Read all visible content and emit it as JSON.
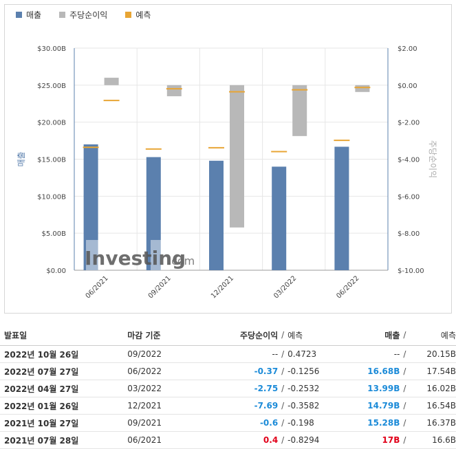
{
  "legend": [
    {
      "label": "매출",
      "color": "#5b80ae"
    },
    {
      "label": "주당순이익",
      "color": "#b8b8b8"
    },
    {
      "label": "예측",
      "color": "#e8a534"
    }
  ],
  "watermark": {
    "brand": "Investing",
    "suffix": ".com"
  },
  "chart_data": {
    "type": "bar",
    "categories": [
      "06/2021",
      "09/2021",
      "12/2021",
      "03/2022",
      "06/2022"
    ],
    "ylabel_left": "매출",
    "ylabel_right": "주당순이익",
    "y_left": {
      "min": 0,
      "max": 30,
      "ticks": [
        "$0.00",
        "$5.00B",
        "$10.00B",
        "$15.00B",
        "$20.00B",
        "$25.00B",
        "$30.00B"
      ]
    },
    "y_right": {
      "min": -10,
      "max": 2,
      "ticks": [
        "$-10.00",
        "$-8.00",
        "$-6.00",
        "$-4.00",
        "$-2.00",
        "$0.00",
        "$2.00"
      ]
    },
    "series": [
      {
        "name": "매출",
        "axis": "left",
        "values": [
          17,
          15.28,
          14.79,
          13.99,
          16.68
        ]
      },
      {
        "name": "주당순이익",
        "axis": "right",
        "values": [
          0.4,
          -0.6,
          -7.69,
          -2.75,
          -0.37
        ]
      },
      {
        "name": "예측",
        "axis": "left",
        "values": [
          16.6,
          16.37,
          16.54,
          16.02,
          17.54
        ]
      },
      {
        "name": "예측",
        "axis": "right",
        "values": [
          -0.8294,
          -0.198,
          -0.3582,
          -0.2532,
          -0.1256
        ]
      }
    ],
    "grid": true
  },
  "table": {
    "headers": {
      "date": "발표일",
      "period": "마감 기준",
      "eps": "주당순이익",
      "sep": "/",
      "eps_forecast": "예측",
      "revenue": "매출",
      "revenue_forecast": "예측"
    },
    "rows": [
      {
        "date": "2022년 10월 26일",
        "period": "09/2022",
        "eps": "--",
        "eps_forecast": "0.4723",
        "revenue": "--",
        "revenue_forecast": "20.15B",
        "eps_class": "na",
        "rev_class": "na"
      },
      {
        "date": "2022년 07월 27일",
        "period": "06/2022",
        "eps": "-0.37",
        "eps_forecast": "-0.1256",
        "revenue": "16.68B",
        "revenue_forecast": "17.54B",
        "eps_class": "neg",
        "rev_class": "neg"
      },
      {
        "date": "2022년 04월 27일",
        "period": "03/2022",
        "eps": "-2.75",
        "eps_forecast": "-0.2532",
        "revenue": "13.99B",
        "revenue_forecast": "16.02B",
        "eps_class": "neg",
        "rev_class": "neg"
      },
      {
        "date": "2022년 01월 26일",
        "period": "12/2021",
        "eps": "-7.69",
        "eps_forecast": "-0.3582",
        "revenue": "14.79B",
        "revenue_forecast": "16.54B",
        "eps_class": "neg",
        "rev_class": "neg"
      },
      {
        "date": "2021년 10월 27일",
        "period": "09/2021",
        "eps": "-0.6",
        "eps_forecast": "-0.198",
        "revenue": "15.28B",
        "revenue_forecast": "16.37B",
        "eps_class": "neg",
        "rev_class": "neg"
      },
      {
        "date": "2021년 07월 28일",
        "period": "06/2021",
        "eps": "0.4",
        "eps_forecast": "-0.8294",
        "revenue": "17B",
        "revenue_forecast": "16.6B",
        "eps_class": "pos",
        "rev_class": "pos"
      }
    ]
  }
}
